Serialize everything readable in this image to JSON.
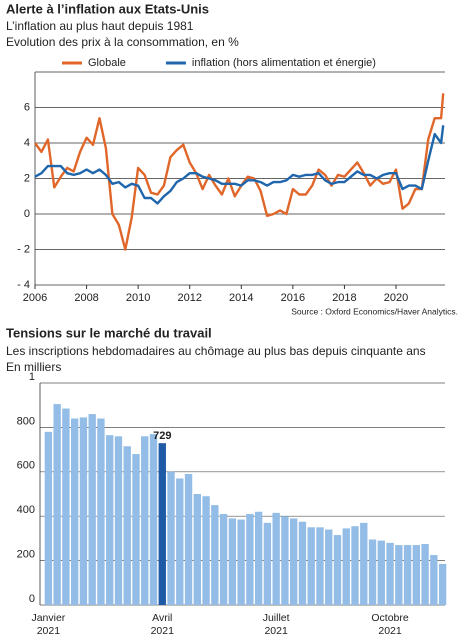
{
  "chart_data": [
    {
      "type": "line",
      "title": "Alerte à l’inflation aux Etats-Unis",
      "subtitle": "L’inflation au plus haut depuis 1981",
      "subtitle2": "Evolution des prix à la consommation, en %",
      "source": "Source : Oxford Economics/Haver Analytics.",
      "x": [
        2006,
        2006.25,
        2006.5,
        2006.75,
        2007,
        2007.25,
        2007.5,
        2007.75,
        2008,
        2008.25,
        2008.5,
        2008.75,
        2009,
        2009.25,
        2009.5,
        2009.75,
        2010,
        2010.25,
        2010.5,
        2010.75,
        2011,
        2011.25,
        2011.5,
        2011.75,
        2012,
        2012.25,
        2012.5,
        2012.75,
        2013,
        2013.25,
        2013.5,
        2013.75,
        2014,
        2014.25,
        2014.5,
        2014.75,
        2015,
        2015.25,
        2015.5,
        2015.75,
        2016,
        2016.25,
        2016.5,
        2016.75,
        2017,
        2017.25,
        2017.5,
        2017.75,
        2018,
        2018.25,
        2018.5,
        2018.75,
        2019,
        2019.25,
        2019.5,
        2019.75,
        2020,
        2020.25,
        2020.5,
        2020.75,
        2021,
        2021.25,
        2021.5,
        2021.75,
        2021.83
      ],
      "series": [
        {
          "name": "Globale",
          "color": "#e0662a",
          "values": [
            4.0,
            3.5,
            4.2,
            1.5,
            2.1,
            2.6,
            2.4,
            3.5,
            4.3,
            3.9,
            5.4,
            3.7,
            0.0,
            -0.6,
            -2.0,
            -0.2,
            2.6,
            2.2,
            1.2,
            1.1,
            1.6,
            3.2,
            3.6,
            3.9,
            2.9,
            2.3,
            1.4,
            2.2,
            1.6,
            1.1,
            2.0,
            1.0,
            1.6,
            2.1,
            2.0,
            1.3,
            -0.1,
            0.0,
            0.2,
            0.0,
            1.4,
            1.1,
            1.1,
            1.6,
            2.5,
            2.2,
            1.6,
            2.2,
            2.1,
            2.5,
            2.9,
            2.3,
            1.6,
            2.0,
            1.7,
            1.8,
            2.5,
            0.3,
            0.6,
            1.4,
            1.4,
            4.2,
            5.4,
            5.4,
            6.8
          ]
        },
        {
          "name": "inflation (hors alimentation et énergie)",
          "color": "#1f66ad",
          "values": [
            2.1,
            2.3,
            2.7,
            2.7,
            2.7,
            2.3,
            2.2,
            2.3,
            2.5,
            2.3,
            2.5,
            2.2,
            1.7,
            1.8,
            1.5,
            1.7,
            1.6,
            0.9,
            0.9,
            0.6,
            1.0,
            1.3,
            1.8,
            2.0,
            2.3,
            2.3,
            2.1,
            2.0,
            1.9,
            1.7,
            1.7,
            1.7,
            1.6,
            1.9,
            1.9,
            1.8,
            1.6,
            1.8,
            1.8,
            1.9,
            2.2,
            2.1,
            2.2,
            2.2,
            2.3,
            1.9,
            1.7,
            1.8,
            1.8,
            2.1,
            2.4,
            2.2,
            2.2,
            2.0,
            2.2,
            2.3,
            2.3,
            1.4,
            1.6,
            1.6,
            1.4,
            3.0,
            4.5,
            4.0,
            5.0
          ]
        }
      ],
      "xlim": [
        2006,
        2021.9
      ],
      "xticks": [
        2006,
        2008,
        2010,
        2012,
        2014,
        2016,
        2018,
        2020
      ],
      "ylim": [
        -4,
        8
      ],
      "yticks": [
        {
          "value": -4,
          "label": "- 4"
        },
        {
          "value": -2,
          "label": "- 2"
        },
        0,
        2,
        4,
        6
      ],
      "grid": true
    },
    {
      "type": "bar",
      "title": "Tensions sur le marché du travail",
      "subtitle": "Les inscriptions hebdomadaires au chômage au plus bas depuis cinquante ans",
      "subtitle2": "En milliers",
      "categories": [
        "Janvier 2021",
        null,
        null,
        null,
        null,
        null,
        null,
        null,
        null,
        null,
        null,
        null,
        null,
        "Avril 2021",
        null,
        null,
        null,
        null,
        null,
        null,
        null,
        null,
        null,
        null,
        null,
        null,
        "Juillet 2021",
        null,
        null,
        null,
        null,
        null,
        null,
        null,
        null,
        null,
        null,
        null,
        null,
        "Octobre 2021",
        null,
        null,
        null,
        null,
        null,
        null
      ],
      "values": [
        780,
        905,
        885,
        840,
        845,
        860,
        840,
        765,
        760,
        715,
        680,
        760,
        770,
        729,
        600,
        570,
        590,
        500,
        490,
        450,
        410,
        390,
        385,
        410,
        420,
        370,
        415,
        400,
        390,
        375,
        350,
        350,
        340,
        315,
        345,
        355,
        370,
        295,
        290,
        280,
        270,
        270,
        270,
        275,
        225,
        185
      ],
      "value_labels": [
        null,
        null,
        null,
        null,
        null,
        null,
        null,
        null,
        null,
        null,
        null,
        null,
        null,
        "729",
        null,
        null,
        null,
        null,
        null,
        null,
        null,
        null,
        null,
        null,
        null,
        null,
        null,
        null,
        null,
        null,
        null,
        null,
        null,
        null,
        null,
        null,
        null,
        null,
        null,
        null,
        null,
        null,
        null,
        null,
        null,
        null
      ],
      "color": "#93bde6",
      "highlight_color": "#1f5aa6",
      "ylim": [
        0,
        1000
      ],
      "yticks": [
        0,
        200,
        400,
        600,
        800,
        {
          "value": 1000,
          "label": "1"
        }
      ],
      "grid": true
    }
  ]
}
